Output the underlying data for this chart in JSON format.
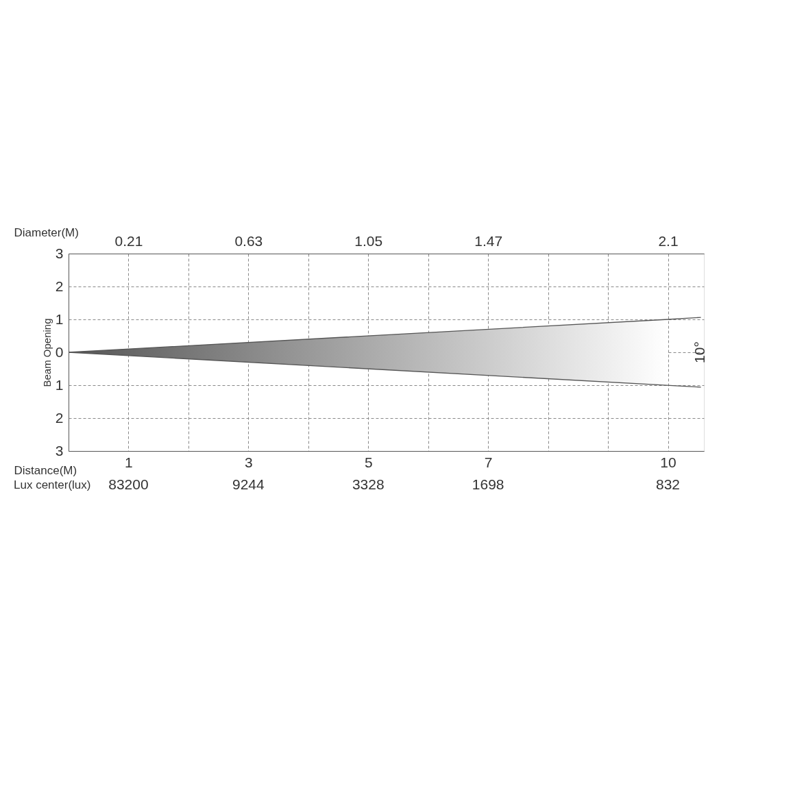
{
  "chart_data": {
    "type": "line",
    "xlabel": "Distance(M)",
    "x2label": "Diameter(M)",
    "ylabel": "Beam Opening",
    "xlim": [
      0,
      10.6
    ],
    "ylim": [
      -3,
      3
    ],
    "x2lim": [
      0,
      2.226
    ],
    "xticks": [
      {
        "value": 0,
        "label": null
      },
      1,
      {
        "value": 2,
        "label": null
      },
      3,
      {
        "value": 4,
        "label": null
      },
      5,
      {
        "value": 6,
        "label": null
      },
      7,
      {
        "value": 8,
        "label": null
      },
      {
        "value": 9,
        "label": null
      },
      10
    ],
    "x2ticks": [
      0.21,
      0.63,
      1.05,
      1.47,
      2.1
    ],
    "yticks": [
      {
        "value": -3,
        "label": "3"
      },
      {
        "value": -2,
        "label": "2"
      },
      {
        "value": -1,
        "label": "1"
      },
      0,
      1,
      2,
      3
    ],
    "grid": true,
    "series": [
      {
        "color": "#555555",
        "x": [
          0,
          10,
          10.55
        ],
        "values": [
          0,
          1,
          1.06
        ],
        "lower": [
          0,
          -1,
          null
        ],
        "upper": [
          0,
          1,
          null
        ]
      },
      {
        "color": "#555555",
        "x": [
          0,
          10.55
        ],
        "values": [
          0,
          -1.06
        ]
      }
    ],
    "annotations": [
      "Lux center(lux)",
      "83200",
      "9244",
      "3328",
      "1698",
      "832",
      "10°"
    ]
  }
}
